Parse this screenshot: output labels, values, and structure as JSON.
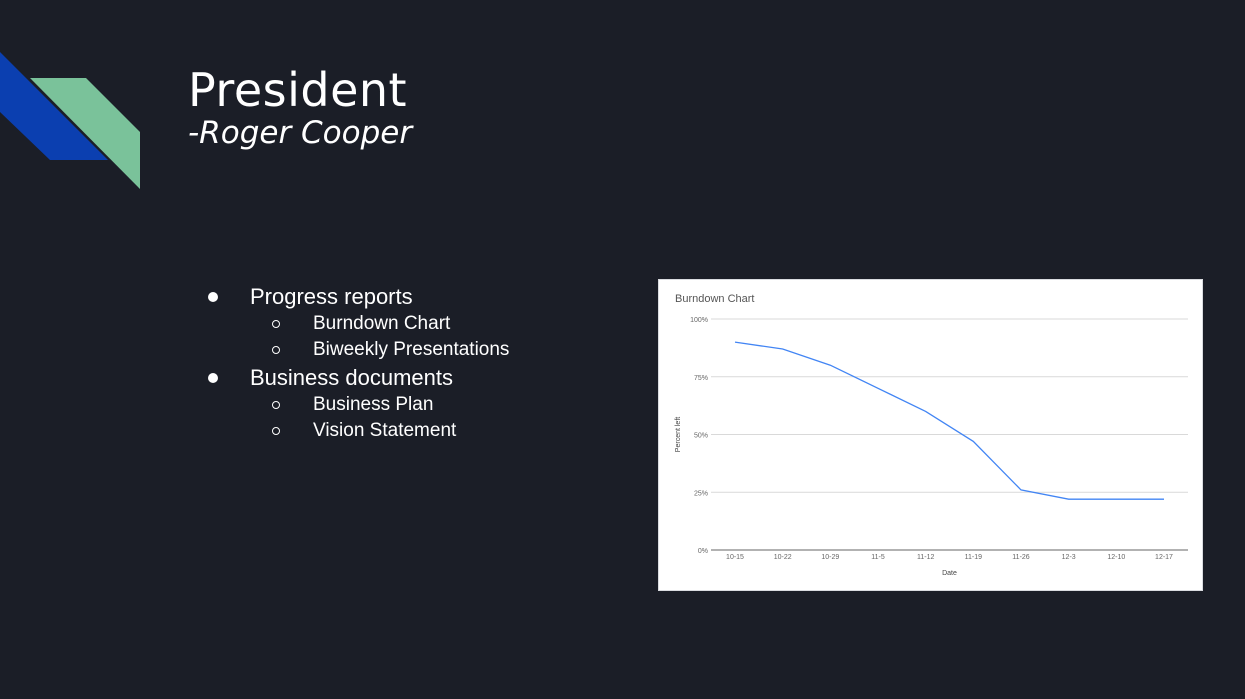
{
  "slide": {
    "title": "President",
    "subtitle": "-Roger Cooper",
    "accent_colors": {
      "blue": "#0b3fb0",
      "green": "#7ac29a",
      "background": "#1b1e27"
    }
  },
  "bullets": [
    {
      "label": "Progress reports",
      "children": [
        "Burndown Chart",
        "Biweekly Presentations"
      ]
    },
    {
      "label": "Business documents",
      "children": [
        "Business Plan",
        "Vision Statement"
      ]
    }
  ],
  "chart_data": {
    "type": "line",
    "title": "Burndown Chart",
    "xlabel": "Date",
    "ylabel": "Percent left",
    "categories": [
      "10-15",
      "10-22",
      "10-29",
      "11-5",
      "11-12",
      "11-19",
      "11-26",
      "12-3",
      "12-10",
      "12-17"
    ],
    "series": [
      {
        "values": [
          90,
          87,
          80,
          70,
          60,
          47,
          26,
          22,
          22,
          22
        ],
        "color": "#4285f4"
      }
    ],
    "yticks": [
      "0%",
      "25%",
      "50%",
      "75%",
      "100%"
    ],
    "ylim": [
      0,
      100
    ],
    "grid": true,
    "legend": "none"
  }
}
